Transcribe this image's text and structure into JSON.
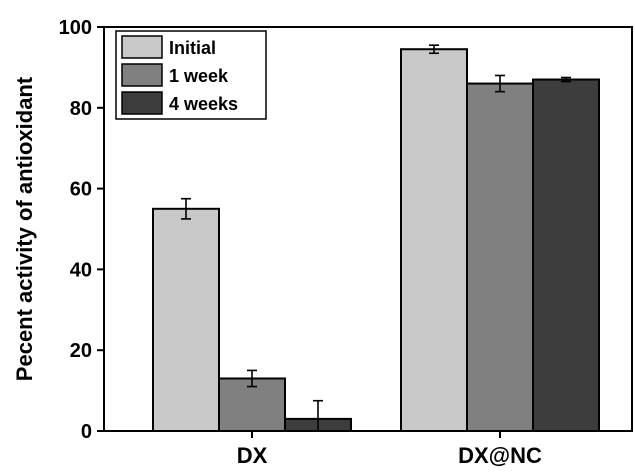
{
  "chart_data": {
    "type": "bar",
    "title": "",
    "xlabel": "",
    "ylabel": "Pecent activity of antioxidant",
    "ylim": [
      0,
      100
    ],
    "yticks": [
      0,
      20,
      40,
      60,
      80,
      100
    ],
    "categories": [
      "DX",
      "DX@NC"
    ],
    "grid": false,
    "legend_position": "top-left",
    "series": [
      {
        "name": "Initial",
        "color": "#c8c8c8",
        "values": [
          55,
          94.5
        ],
        "errors": [
          2.5,
          1
        ]
      },
      {
        "name": "1 week",
        "color": "#808080",
        "values": [
          13,
          86
        ],
        "errors": [
          2,
          2
        ]
      },
      {
        "name": "4 weeks",
        "color": "#3d3d3d",
        "values": [
          3,
          87
        ],
        "errors": [
          4.5,
          0.5
        ]
      }
    ]
  }
}
